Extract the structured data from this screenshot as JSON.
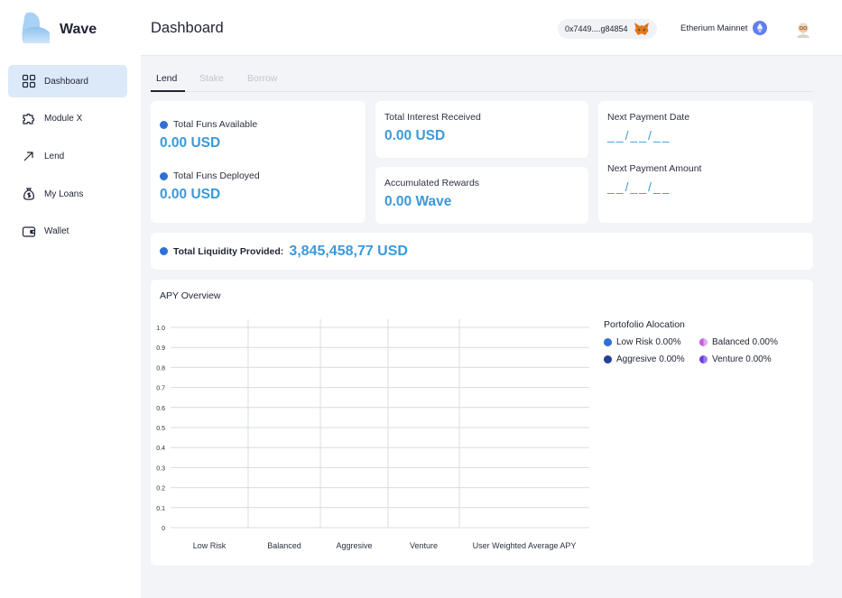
{
  "brand": {
    "name": "Wave"
  },
  "sidebar": {
    "items": [
      {
        "label": "Dashboard",
        "icon": "grid-icon",
        "active": true
      },
      {
        "label": "Module X",
        "icon": "puzzle-icon",
        "active": false
      },
      {
        "label": "Lend",
        "icon": "arrow-up-right-icon",
        "active": false
      },
      {
        "label": "My Loans",
        "icon": "money-bag-icon",
        "active": false
      },
      {
        "label": "Wallet",
        "icon": "wallet-icon",
        "active": false
      }
    ]
  },
  "header": {
    "title": "Dashboard",
    "wallet_address": "0x7449....g84854",
    "network": "Etherium Mainnet"
  },
  "tabs": [
    {
      "label": "Lend",
      "active": true
    },
    {
      "label": "Stake",
      "active": false
    },
    {
      "label": "Borrow",
      "active": false
    }
  ],
  "stats": {
    "total_funds_available": {
      "label": "Total Funs Available",
      "value": "0.00 USD"
    },
    "total_funds_deployed": {
      "label": "Total Funs Deployed",
      "value": "0.00 USD"
    },
    "total_interest_received": {
      "label": "Total Interest Received",
      "value": "0.00 USD"
    },
    "accumulated_rewards": {
      "label": "Accumulated Rewards",
      "value": "0.00 Wave"
    },
    "next_payment_date": {
      "label": "Next Payment Date",
      "value": "__/__/__"
    },
    "next_payment_amount": {
      "label": "Next Payment Amount",
      "value": "__/__/__"
    }
  },
  "liquidity": {
    "label": "Total Liquidity Provided:",
    "value": "3,845,458,77 USD"
  },
  "chart_data": {
    "type": "bar",
    "title": "APY Overview",
    "categories": [
      "Low Risk",
      "Balanced",
      "Aggresive",
      "Venture",
      "User Weighted Average APY"
    ],
    "values": [
      0,
      0,
      0,
      0,
      0
    ],
    "yticks": [
      "0",
      "0.1",
      "0.2",
      "0.3",
      "0.4",
      "0.5",
      "0.6",
      "0.7",
      "0.8",
      "0.9",
      "1.0"
    ],
    "ylim": [
      0,
      1.0
    ],
    "grid": true,
    "xlabel": "",
    "ylabel": ""
  },
  "portfolio": {
    "title": "Portofolio Alocation",
    "items": [
      {
        "label": "Low Risk 0.00%",
        "color": "#2f6fd6"
      },
      {
        "label": "Balanced 0.00%",
        "color": "#c35ee0"
      },
      {
        "label": "Aggresive 0.00%",
        "color": "#24418f"
      },
      {
        "label": "Venture 0.00%",
        "color": "#6a3fe0"
      }
    ]
  },
  "colors": {
    "accent": "#3a9ad9",
    "active_nav": "#dbe9f8",
    "dot": "#2f6fd6"
  }
}
